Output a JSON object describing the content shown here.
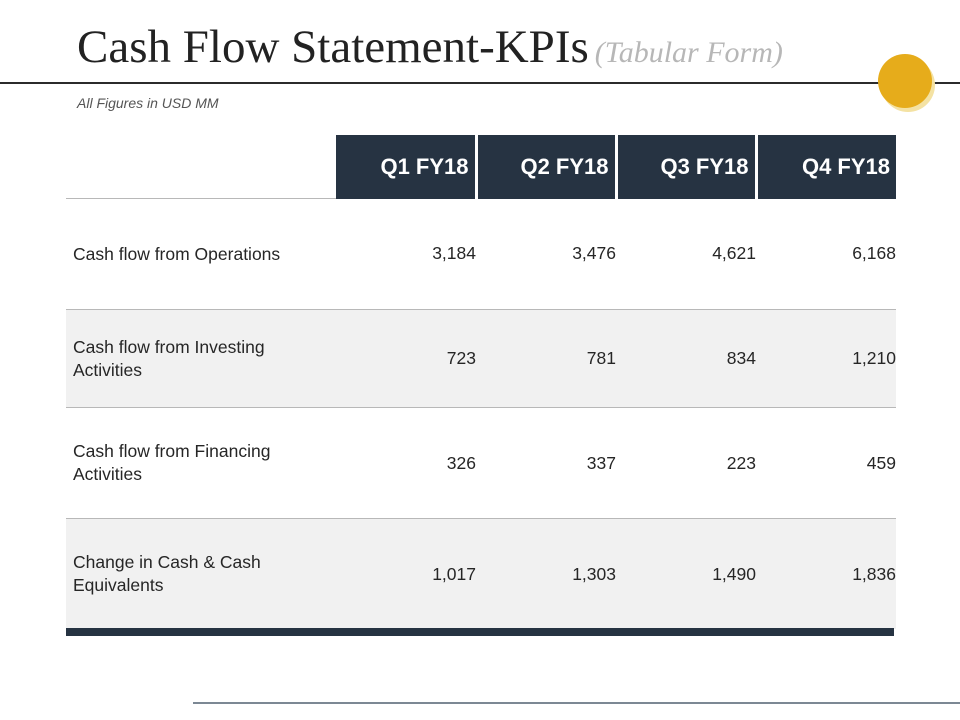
{
  "slide": {
    "title_main": "Cash Flow Statement-KPIs",
    "title_suffix": "(Tabular Form)",
    "subtitle": "All Figures in USD MM"
  },
  "table": {
    "headers": [
      "Q1 FY18",
      "Q2 FY18",
      "Q3 FY18",
      "Q4 FY18"
    ],
    "rows": [
      {
        "label": "Cash flow from Operations",
        "values": [
          "3,184",
          "3,476",
          "4,621",
          "6,168"
        ]
      },
      {
        "label": "Cash flow from Investing Activities",
        "values": [
          "723",
          "781",
          "834",
          "1,210"
        ]
      },
      {
        "label": "Cash flow from Financing Activities",
        "values": [
          "326",
          "337",
          "223",
          "459"
        ]
      },
      {
        "label": "Change in Cash & Cash Equivalents",
        "values": [
          "1,017",
          "1,303",
          "1,490",
          "1,836"
        ]
      }
    ]
  },
  "colors": {
    "header_background": "#263342",
    "accent": "#e6ac1b",
    "alternate_row": "#f1f1f1"
  }
}
